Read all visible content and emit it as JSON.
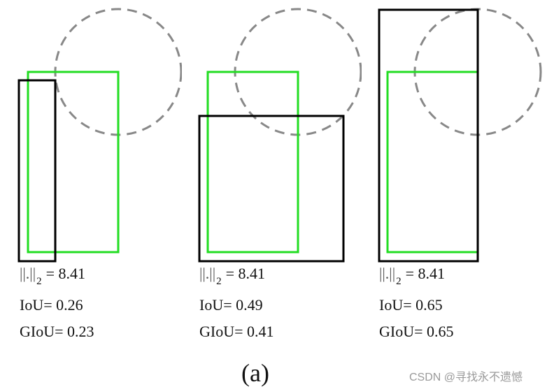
{
  "panels": [
    {
      "norm_symbol": "||.||",
      "norm_subscript": "2",
      "norm_value": "= 8.41",
      "iou": "IoU= 0.26",
      "giou": "GIoU= 0.23"
    },
    {
      "norm_symbol": "||.||",
      "norm_subscript": "2",
      "norm_value": "= 8.41",
      "iou": "IoU= 0.49",
      "giou": "GIoU= 0.41"
    },
    {
      "norm_symbol": "||.||",
      "norm_subscript": "2",
      "norm_value": "= 8.41",
      "iou": "IoU= 0.65",
      "giou": "GIoU= 0.65"
    }
  ],
  "caption": "(a)",
  "watermark": "CSDN @寻找永不遗憾",
  "colors": {
    "ground_truth_box": "#22dd22",
    "predicted_box": "#000000",
    "circle": "#888888"
  }
}
